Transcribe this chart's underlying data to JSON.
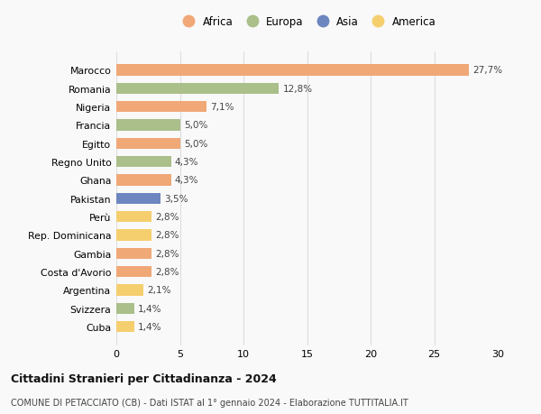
{
  "title": "Cittadini Stranieri per Cittadinanza - 2024",
  "subtitle": "COMUNE DI PETACCIATO (CB) - Dati ISTAT al 1° gennaio 2024 - Elaborazione TUTTITALIA.IT",
  "countries": [
    "Marocco",
    "Romania",
    "Nigeria",
    "Francia",
    "Egitto",
    "Regno Unito",
    "Ghana",
    "Pakistan",
    "Perù",
    "Rep. Dominicana",
    "Gambia",
    "Costa d'Avorio",
    "Argentina",
    "Svizzera",
    "Cuba"
  ],
  "values": [
    27.7,
    12.8,
    7.1,
    5.0,
    5.0,
    4.3,
    4.3,
    3.5,
    2.8,
    2.8,
    2.8,
    2.8,
    2.1,
    1.4,
    1.4
  ],
  "labels": [
    "27,7%",
    "12,8%",
    "7,1%",
    "5,0%",
    "5,0%",
    "4,3%",
    "4,3%",
    "3,5%",
    "2,8%",
    "2,8%",
    "2,8%",
    "2,8%",
    "2,1%",
    "1,4%",
    "1,4%"
  ],
  "continents": [
    "Africa",
    "Europa",
    "Africa",
    "Europa",
    "Africa",
    "Europa",
    "Africa",
    "Asia",
    "America",
    "America",
    "Africa",
    "Africa",
    "America",
    "Europa",
    "America"
  ],
  "colors": {
    "Africa": "#F0A877",
    "Europa": "#AABF8A",
    "Asia": "#6E86C0",
    "America": "#F5CE6E"
  },
  "legend_order": [
    "Africa",
    "Europa",
    "Asia",
    "America"
  ],
  "xlim": [
    0,
    30
  ],
  "xticks": [
    0,
    5,
    10,
    15,
    20,
    25,
    30
  ],
  "background_color": "#f9f9f9",
  "grid_color": "#dddddd"
}
